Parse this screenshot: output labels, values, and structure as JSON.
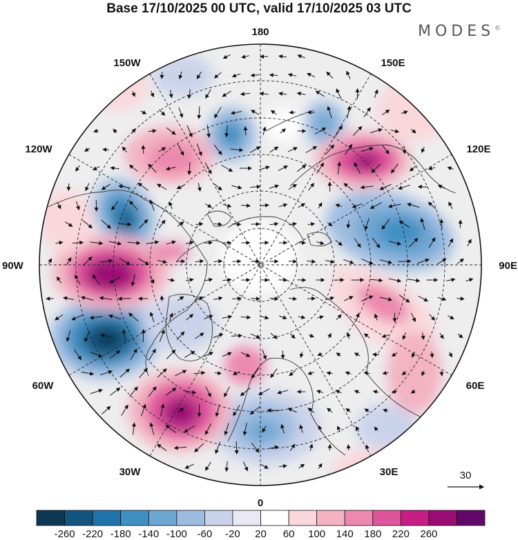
{
  "title": "Base 17/10/2025 00 UTC, valid 17/10/2025 03 UTC",
  "brand": "MODES",
  "brand_mark": "©",
  "longitude_labels": {
    "top": "180",
    "bottom": "0",
    "left": "90W",
    "right": "90E",
    "upper_left_1": "150W",
    "upper_left_2": "120W",
    "upper_right_1": "150E",
    "upper_right_2": "120E",
    "lower_left_1": "60W",
    "lower_left_2": "30W",
    "lower_right_1": "60E",
    "lower_right_2": "30E"
  },
  "reference_vector": {
    "label": "30"
  },
  "colorbar": {
    "ticks": [
      "-260",
      "-220",
      "-180",
      "-140",
      "-100",
      "-60",
      "-20",
      "20",
      "60",
      "100",
      "140",
      "180",
      "220",
      "260"
    ],
    "colors": [
      "#0d3652",
      "#12547e",
      "#1f73a8",
      "#3f8fc2",
      "#6ea6d2",
      "#9ebce0",
      "#cbd3ea",
      "#e9e8f3",
      "#ffffff",
      "#f9d7dc",
      "#f3b3c3",
      "#ec89ad",
      "#df559b",
      "#c51e85",
      "#9b0b74",
      "#5f0868"
    ]
  },
  "anomaly_centers": [
    {
      "name": "neg-atlantic",
      "value": -260
    },
    {
      "name": "neg-alaska",
      "value": -200
    },
    {
      "name": "neg-siberia",
      "value": -160
    },
    {
      "name": "neg-pacific",
      "value": -140
    },
    {
      "name": "neg-europe",
      "value": -140
    },
    {
      "name": "neg-bering",
      "value": -100
    },
    {
      "name": "pos-canada",
      "value": 240
    },
    {
      "name": "pos-atlantic",
      "value": 220
    },
    {
      "name": "pos-eastsiberia",
      "value": 220
    },
    {
      "name": "pos-pacific",
      "value": 140
    },
    {
      "name": "pos-russia",
      "value": 120
    },
    {
      "name": "pos-scandinavia",
      "value": 80
    }
  ]
}
